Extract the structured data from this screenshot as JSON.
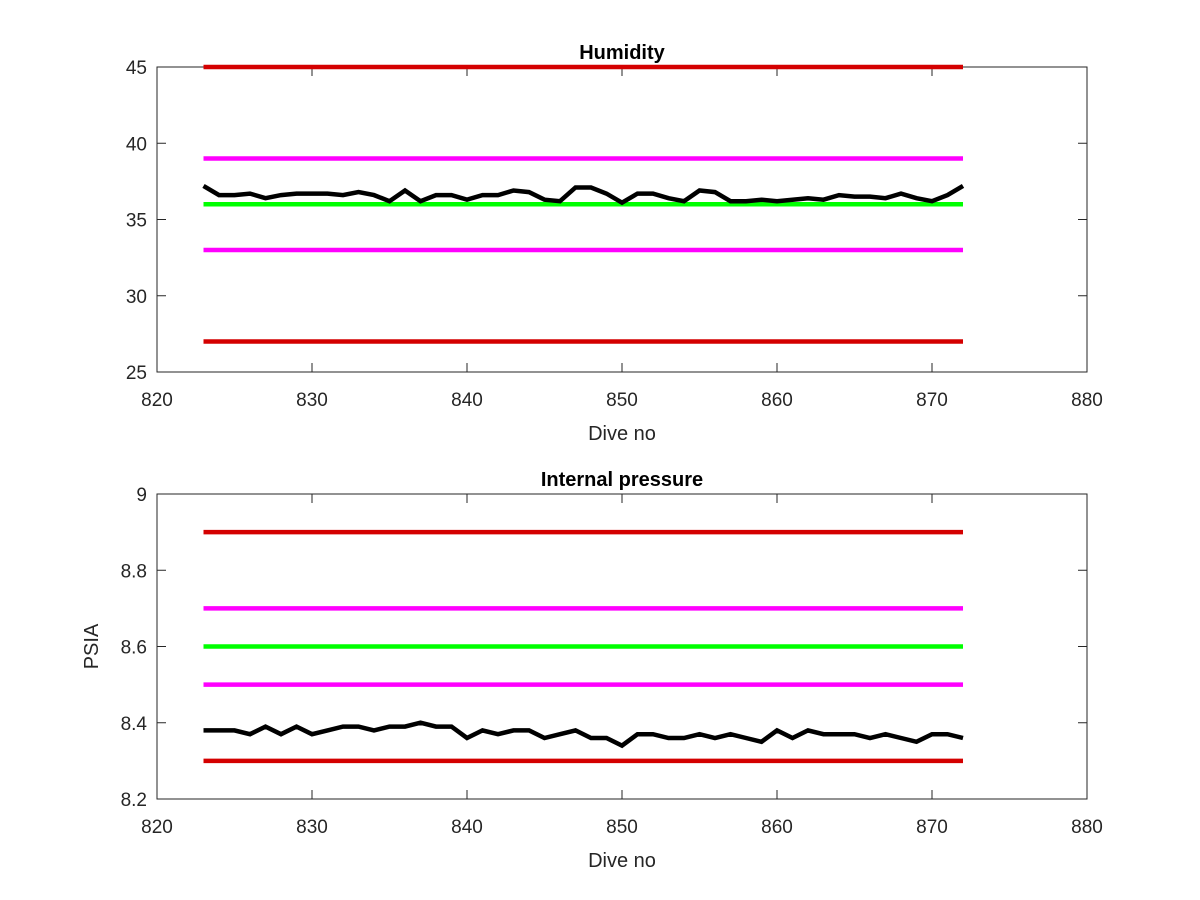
{
  "chart_data": [
    {
      "type": "line",
      "title": "Humidity",
      "xlabel": "Dive no",
      "ylabel": "",
      "xlim": [
        820,
        880
      ],
      "ylim": [
        25,
        45
      ],
      "xticks": [
        "820",
        "830",
        "840",
        "850",
        "860",
        "870",
        "880"
      ],
      "yticks": [
        "25",
        "30",
        "35",
        "40",
        "45"
      ],
      "grid": false,
      "series": [
        {
          "color": "#d40000",
          "x": [
            823,
            872
          ],
          "y": [
            45,
            45
          ]
        },
        {
          "color": "#ff00ff",
          "x": [
            823,
            872
          ],
          "y": [
            39,
            39
          ]
        },
        {
          "color": "#00ff00",
          "x": [
            823,
            872
          ],
          "y": [
            36,
            36
          ]
        },
        {
          "color": "#ff00ff",
          "x": [
            823,
            872
          ],
          "y": [
            33,
            33
          ]
        },
        {
          "color": "#d40000",
          "x": [
            823,
            872
          ],
          "y": [
            27,
            27
          ]
        },
        {
          "color": "#000000",
          "x": [
            823,
            824,
            825,
            826,
            827,
            828,
            829,
            830,
            831,
            832,
            833,
            834,
            835,
            836,
            837,
            838,
            839,
            840,
            841,
            842,
            843,
            844,
            845,
            846,
            847,
            848,
            849,
            850,
            851,
            852,
            853,
            854,
            855,
            856,
            857,
            858,
            859,
            860,
            861,
            862,
            863,
            864,
            865,
            866,
            867,
            868,
            869,
            870,
            871,
            872
          ],
          "y": [
            37.2,
            36.6,
            36.6,
            36.7,
            36.4,
            36.6,
            36.7,
            36.7,
            36.7,
            36.6,
            36.8,
            36.6,
            36.2,
            36.9,
            36.2,
            36.6,
            36.6,
            36.3,
            36.6,
            36.6,
            36.9,
            36.8,
            36.3,
            36.2,
            37.1,
            37.1,
            36.7,
            36.1,
            36.7,
            36.7,
            36.4,
            36.2,
            36.9,
            36.8,
            36.2,
            36.2,
            36.3,
            36.2,
            36.3,
            36.4,
            36.3,
            36.6,
            36.5,
            36.5,
            36.4,
            36.7,
            36.4,
            36.2,
            36.6,
            37.2
          ]
        }
      ]
    },
    {
      "type": "line",
      "title": "Internal pressure",
      "xlabel": "Dive no",
      "ylabel": "PSIA",
      "xlim": [
        820,
        880
      ],
      "ylim": [
        8.2,
        9.0
      ],
      "xticks": [
        "820",
        "830",
        "840",
        "850",
        "860",
        "870",
        "880"
      ],
      "yticks": [
        "8.2",
        "8.4",
        "8.6",
        "8.8",
        "9"
      ],
      "grid": false,
      "series": [
        {
          "color": "#d40000",
          "x": [
            823,
            872
          ],
          "y": [
            8.9,
            8.9
          ]
        },
        {
          "color": "#ff00ff",
          "x": [
            823,
            872
          ],
          "y": [
            8.7,
            8.7
          ]
        },
        {
          "color": "#00ff00",
          "x": [
            823,
            872
          ],
          "y": [
            8.6,
            8.6
          ]
        },
        {
          "color": "#ff00ff",
          "x": [
            823,
            872
          ],
          "y": [
            8.5,
            8.5
          ]
        },
        {
          "color": "#d40000",
          "x": [
            823,
            872
          ],
          "y": [
            8.3,
            8.3
          ]
        },
        {
          "color": "#000000",
          "x": [
            823,
            824,
            825,
            826,
            827,
            828,
            829,
            830,
            831,
            832,
            833,
            834,
            835,
            836,
            837,
            838,
            839,
            840,
            841,
            842,
            843,
            844,
            845,
            846,
            847,
            848,
            849,
            850,
            851,
            852,
            853,
            854,
            855,
            856,
            857,
            858,
            859,
            860,
            861,
            862,
            863,
            864,
            865,
            866,
            867,
            868,
            869,
            870,
            871,
            872
          ],
          "y": [
            8.38,
            8.38,
            8.38,
            8.37,
            8.39,
            8.37,
            8.39,
            8.37,
            8.38,
            8.39,
            8.39,
            8.38,
            8.39,
            8.39,
            8.4,
            8.39,
            8.39,
            8.36,
            8.38,
            8.37,
            8.38,
            8.38,
            8.36,
            8.37,
            8.38,
            8.36,
            8.36,
            8.34,
            8.37,
            8.37,
            8.36,
            8.36,
            8.37,
            8.36,
            8.37,
            8.36,
            8.35,
            8.38,
            8.36,
            8.38,
            8.37,
            8.37,
            8.37,
            8.36,
            8.37,
            8.36,
            8.35,
            8.37,
            8.37,
            8.36
          ]
        }
      ]
    }
  ]
}
